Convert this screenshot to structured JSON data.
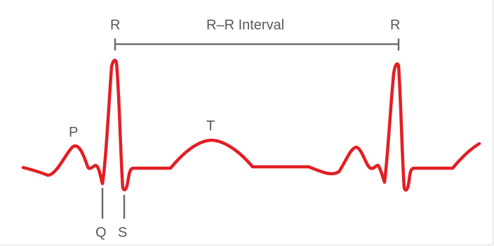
{
  "labels": {
    "r_left": "R",
    "r_right": "R",
    "rr_interval": "R–R Interval",
    "p": "P",
    "t": "T",
    "q": "Q",
    "s": "S"
  },
  "colors": {
    "waveform": "#e31e24",
    "annotation": "#6d6d6d",
    "text": "#595959"
  }
}
